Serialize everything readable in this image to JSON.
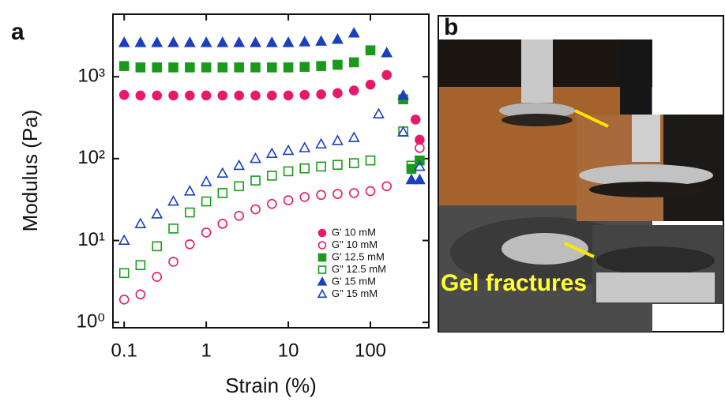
{
  "chart_data": {
    "type": "scatter",
    "panel_label": "a",
    "x_label": "Strain (%)",
    "y_label": "Modulus (Pa)",
    "xscale": "log",
    "yscale": "log",
    "xlim": [
      0.073,
      515
    ],
    "ylim": [
      0.86,
      5800
    ],
    "xticks": [
      0.1,
      1,
      10,
      100
    ],
    "yticks": [
      {
        "value": 1,
        "label": "10⁰"
      },
      {
        "value": 10,
        "label": "10¹"
      },
      {
        "value": 100,
        "label": "10²"
      },
      {
        "value": 1000,
        "label": "10³"
      }
    ],
    "legend": "lower right",
    "series": [
      {
        "name": "G' 10 mM",
        "color": "#e8196a",
        "marker": "circle",
        "filled": true,
        "x": [
          0.1,
          0.158,
          0.251,
          0.398,
          0.631,
          1,
          1.58,
          2.51,
          3.98,
          6.31,
          10,
          15.8,
          25.1,
          39.8,
          63.1,
          100,
          158,
          355,
          398
        ],
        "values": [
          600,
          590,
          590,
          590,
          590,
          590,
          590,
          590,
          590,
          590,
          590,
          600,
          610,
          630,
          680,
          800,
          1050,
          300,
          170
        ]
      },
      {
        "name": "G\" 10 mM",
        "color": "#e8196a",
        "marker": "circle",
        "filled": false,
        "x": [
          0.1,
          0.158,
          0.251,
          0.398,
          0.631,
          1,
          1.58,
          2.51,
          3.98,
          6.31,
          10,
          15.8,
          25.1,
          39.8,
          63.1,
          100,
          158,
          398
        ],
        "values": [
          1.9,
          2.2,
          3.6,
          5.5,
          9,
          12.5,
          16,
          20,
          24,
          28,
          31,
          34,
          36,
          37,
          38,
          40,
          46,
          135
        ]
      },
      {
        "name": "G' 12.5 mM",
        "color": "#1a9a1a",
        "marker": "square",
        "filled": true,
        "x": [
          0.1,
          0.158,
          0.251,
          0.398,
          0.631,
          1,
          1.58,
          2.51,
          3.98,
          6.31,
          10,
          15.8,
          25.1,
          39.8,
          63.1,
          100,
          251,
          316,
          398
        ],
        "values": [
          1350,
          1300,
          1300,
          1300,
          1300,
          1300,
          1300,
          1300,
          1300,
          1300,
          1300,
          1320,
          1350,
          1400,
          1500,
          2100,
          530,
          75,
          95
        ]
      },
      {
        "name": "G\" 12.5 mM",
        "color": "#1a9a1a",
        "marker": "square",
        "filled": false,
        "x": [
          0.1,
          0.158,
          0.251,
          0.398,
          0.631,
          1,
          1.58,
          2.51,
          3.98,
          6.31,
          10,
          15.8,
          25.1,
          39.8,
          63.1,
          100,
          251,
          316
        ],
        "values": [
          4,
          5,
          8.5,
          14,
          22,
          30,
          38,
          46,
          54,
          62,
          70,
          76,
          80,
          84,
          88,
          95,
          215,
          82
        ]
      },
      {
        "name": "G' 15 mM",
        "color": "#1a3fbf",
        "marker": "triangle",
        "filled": true,
        "x": [
          0.1,
          0.158,
          0.251,
          0.398,
          0.631,
          1,
          1.58,
          2.51,
          3.98,
          6.31,
          10,
          15.8,
          25.1,
          39.8,
          63.1,
          158,
          251,
          316,
          398
        ],
        "values": [
          2600,
          2600,
          2600,
          2600,
          2600,
          2600,
          2600,
          2600,
          2600,
          2600,
          2600,
          2650,
          2700,
          2850,
          3400,
          1950,
          590,
          55,
          55
        ]
      },
      {
        "name": "G\" 15 mM",
        "color": "#1a3fbf",
        "marker": "triangle",
        "filled": false,
        "x": [
          0.1,
          0.158,
          0.251,
          0.398,
          0.631,
          1,
          1.58,
          2.51,
          3.98,
          6.31,
          10,
          15.8,
          25.1,
          39.8,
          63.1,
          126,
          251,
          398
        ],
        "values": [
          10,
          16,
          21,
          30,
          40,
          52,
          66,
          82,
          100,
          115,
          125,
          135,
          150,
          165,
          180,
          350,
          210,
          80
        ]
      }
    ]
  },
  "panel_b": {
    "label": "b",
    "caption": "Gel fractures"
  }
}
